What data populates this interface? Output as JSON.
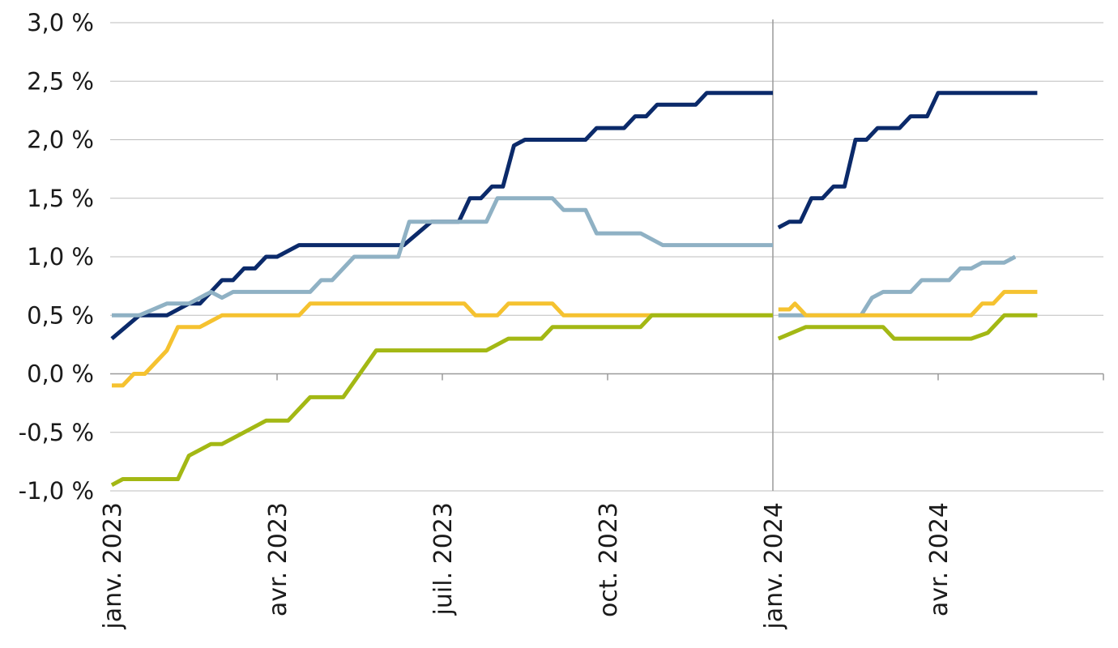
{
  "chart_data": {
    "type": "line",
    "title": "",
    "xlabel": "",
    "ylabel": "",
    "ylim": [
      -1.0,
      3.0
    ],
    "y_ticks": [
      -1.0,
      -0.5,
      0.0,
      0.5,
      1.0,
      1.5,
      2.0,
      2.5,
      3.0
    ],
    "y_tick_labels": [
      "-1,0 %",
      "-0,5 %",
      "0,0 %",
      "0,5 %",
      "1,0 %",
      "1,5 %",
      "2,0 %",
      "2,5 %",
      "3,0 %"
    ],
    "x_ticks": [
      {
        "label": "janv. 2023",
        "t": 0
      },
      {
        "label": "avr. 2023",
        "t": 3
      },
      {
        "label": "juil.  2023",
        "t": 6
      },
      {
        "label": "oct. 2023",
        "t": 9
      },
      {
        "label": "janv. 2024",
        "t": 12
      },
      {
        "label": "avr. 2024",
        "t": 15
      }
    ],
    "xlim": [
      0,
      18
    ],
    "grid": true,
    "divider_at": 12,
    "series": [
      {
        "color": "#0b2a6a",
        "segments": [
          [
            [
              0.0,
              0.3
            ],
            [
              0.5,
              0.5
            ],
            [
              1.0,
              0.5
            ],
            [
              1.4,
              0.6
            ],
            [
              1.6,
              0.6
            ],
            [
              2.0,
              0.8
            ],
            [
              2.2,
              0.8
            ],
            [
              2.4,
              0.9
            ],
            [
              2.6,
              0.9
            ],
            [
              2.8,
              1.0
            ],
            [
              3.0,
              1.0
            ],
            [
              3.4,
              1.1
            ],
            [
              5.3,
              1.1
            ],
            [
              5.8,
              1.3
            ],
            [
              6.3,
              1.3
            ],
            [
              6.5,
              1.5
            ],
            [
              6.7,
              1.5
            ],
            [
              6.9,
              1.6
            ],
            [
              7.1,
              1.6
            ],
            [
              7.3,
              1.95
            ],
            [
              7.5,
              2.0
            ],
            [
              8.6,
              2.0
            ],
            [
              8.8,
              2.1
            ],
            [
              9.3,
              2.1
            ],
            [
              9.5,
              2.2
            ],
            [
              9.7,
              2.2
            ],
            [
              9.9,
              2.3
            ],
            [
              10.6,
              2.3
            ],
            [
              10.8,
              2.4
            ],
            [
              12.0,
              2.4
            ]
          ],
          [
            [
              12.1,
              1.25
            ],
            [
              12.3,
              1.3
            ],
            [
              12.5,
              1.3
            ],
            [
              12.7,
              1.5
            ],
            [
              12.9,
              1.5
            ],
            [
              13.1,
              1.6
            ],
            [
              13.3,
              1.6
            ],
            [
              13.5,
              2.0
            ],
            [
              13.7,
              2.0
            ],
            [
              13.9,
              2.1
            ],
            [
              14.3,
              2.1
            ],
            [
              14.5,
              2.2
            ],
            [
              14.8,
              2.2
            ],
            [
              15.0,
              2.4
            ],
            [
              16.8,
              2.4
            ]
          ]
        ]
      },
      {
        "color": "#8fb1c4",
        "segments": [
          [
            [
              0.0,
              0.5
            ],
            [
              0.5,
              0.5
            ],
            [
              1.0,
              0.6
            ],
            [
              1.4,
              0.6
            ],
            [
              1.8,
              0.7
            ],
            [
              2.0,
              0.65
            ],
            [
              2.2,
              0.7
            ],
            [
              3.6,
              0.7
            ],
            [
              3.8,
              0.8
            ],
            [
              4.0,
              0.8
            ],
            [
              4.4,
              1.0
            ],
            [
              5.2,
              1.0
            ],
            [
              5.4,
              1.3
            ],
            [
              6.8,
              1.3
            ],
            [
              7.0,
              1.5
            ],
            [
              8.0,
              1.5
            ],
            [
              8.2,
              1.4
            ],
            [
              8.6,
              1.4
            ],
            [
              8.8,
              1.2
            ],
            [
              9.6,
              1.2
            ],
            [
              10.0,
              1.1
            ],
            [
              12.0,
              1.1
            ]
          ],
          [
            [
              12.1,
              0.5
            ],
            [
              13.6,
              0.5
            ],
            [
              13.8,
              0.65
            ],
            [
              14.0,
              0.7
            ],
            [
              14.5,
              0.7
            ],
            [
              14.7,
              0.8
            ],
            [
              15.2,
              0.8
            ],
            [
              15.4,
              0.9
            ],
            [
              15.6,
              0.9
            ],
            [
              15.8,
              0.95
            ],
            [
              16.2,
              0.95
            ],
            [
              16.4,
              1.0
            ]
          ]
        ]
      },
      {
        "color": "#f5c230",
        "segments": [
          [
            [
              0.0,
              -0.1
            ],
            [
              0.2,
              -0.1
            ],
            [
              0.4,
              0.0
            ],
            [
              0.6,
              0.0
            ],
            [
              1.0,
              0.2
            ],
            [
              1.2,
              0.4
            ],
            [
              1.6,
              0.4
            ],
            [
              2.0,
              0.5
            ],
            [
              3.4,
              0.5
            ],
            [
              3.6,
              0.6
            ],
            [
              6.4,
              0.6
            ],
            [
              6.6,
              0.5
            ],
            [
              7.0,
              0.5
            ],
            [
              7.2,
              0.6
            ],
            [
              8.0,
              0.6
            ],
            [
              8.2,
              0.5
            ],
            [
              12.0,
              0.5
            ]
          ],
          [
            [
              12.1,
              0.55
            ],
            [
              12.3,
              0.55
            ],
            [
              12.4,
              0.6
            ],
            [
              12.6,
              0.5
            ],
            [
              15.6,
              0.5
            ],
            [
              15.8,
              0.6
            ],
            [
              16.0,
              0.6
            ],
            [
              16.2,
              0.7
            ],
            [
              16.8,
              0.7
            ]
          ]
        ]
      },
      {
        "color": "#a3b814",
        "segments": [
          [
            [
              0.0,
              -0.95
            ],
            [
              0.2,
              -0.9
            ],
            [
              1.2,
              -0.9
            ],
            [
              1.4,
              -0.7
            ],
            [
              1.8,
              -0.6
            ],
            [
              2.0,
              -0.6
            ],
            [
              2.4,
              -0.5
            ],
            [
              2.8,
              -0.4
            ],
            [
              3.2,
              -0.4
            ],
            [
              3.6,
              -0.2
            ],
            [
              4.2,
              -0.2
            ],
            [
              4.8,
              0.2
            ],
            [
              6.8,
              0.2
            ],
            [
              7.2,
              0.3
            ],
            [
              7.8,
              0.3
            ],
            [
              8.0,
              0.4
            ],
            [
              9.6,
              0.4
            ],
            [
              9.8,
              0.5
            ],
            [
              12.0,
              0.5
            ]
          ],
          [
            [
              12.1,
              0.3
            ],
            [
              12.6,
              0.4
            ],
            [
              14.0,
              0.4
            ],
            [
              14.2,
              0.3
            ],
            [
              15.6,
              0.3
            ],
            [
              15.9,
              0.35
            ],
            [
              16.2,
              0.5
            ],
            [
              16.8,
              0.5
            ]
          ]
        ]
      }
    ]
  }
}
